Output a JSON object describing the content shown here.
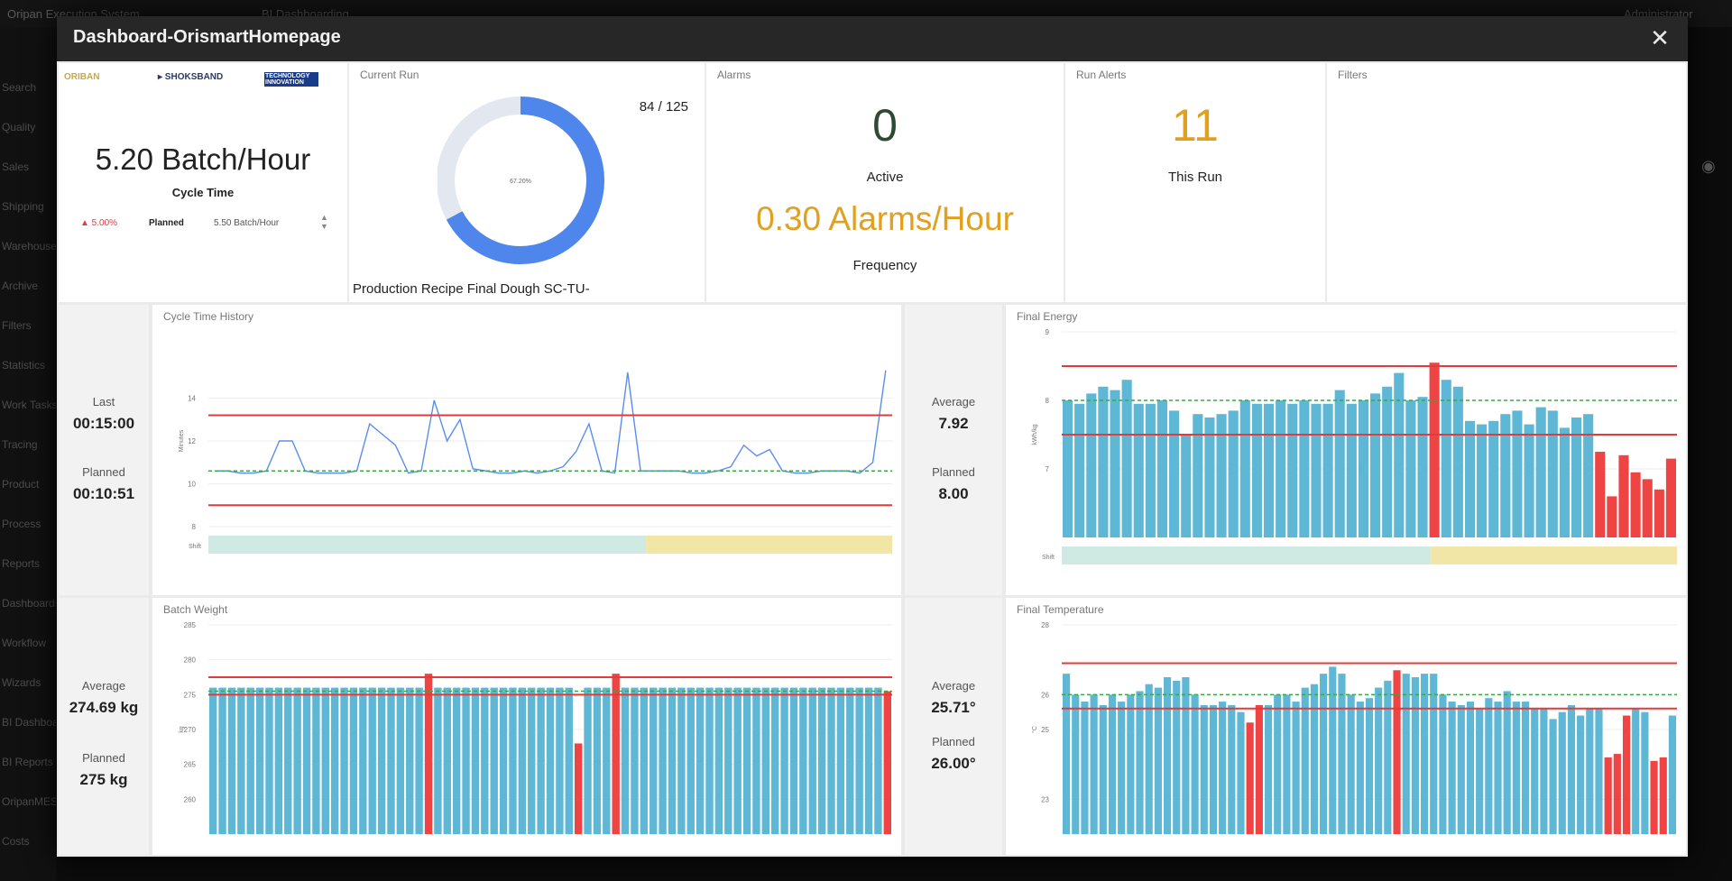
{
  "background": {
    "app_title": "Oripan Execution System",
    "tab_label": "BI Dashboarding",
    "user": "Administrator",
    "sidebar": [
      "Search",
      "Quality",
      "Sales",
      "Shipping",
      "Warehouse",
      "Archive",
      "Filters",
      "Statistics",
      "Work Tasks",
      "Tracing",
      "Product",
      "Process",
      "Reports",
      "Dashboards",
      "Workflow",
      "Wizards",
      "BI Dashboard",
      "BI Reports",
      "OripanMES",
      "Costs"
    ]
  },
  "modal": {
    "title": "Dashboard-OrismartHomepage",
    "close": "✕"
  },
  "logos": {
    "l1": "ORIBAN",
    "l2": "▸ SHOKSBAND",
    "l3": "TECHNOLOGY INNOVATION"
  },
  "cycle": {
    "value": "5.20 Batch/Hour",
    "label": "Cycle Time",
    "delta": "▲ 5.00%",
    "planned_label": "Planned",
    "planned_value": "5.50 Batch/Hour"
  },
  "current_run": {
    "title": "Current Run",
    "count": "84 / 125",
    "percent_label": "67.20%",
    "percent": 0.672,
    "recipe": "Production Recipe Final Dough SC-TU-"
  },
  "alarms": {
    "title": "Alarms",
    "active_value": "0",
    "active_label": "Active",
    "rate_value": "0.30 Alarms/Hour",
    "rate_label": "Frequency"
  },
  "run_alerts": {
    "title": "Run Alerts",
    "value": "11",
    "label": "This Run"
  },
  "filters": {
    "title": "Filters"
  },
  "colors": {
    "bar": "#5fb7d6",
    "alarm": "#ef4444",
    "line": "#5b8def",
    "gauge": "#4f86ec",
    "green": "#e0a020",
    "active": "#2e4a35",
    "shift1": "#cfe9e3",
    "shift2": "#f2e6a6"
  },
  "stats": {
    "cycle": {
      "l1": "Last",
      "v1": "00:15:00",
      "l2": "Planned",
      "v2": "00:10:51"
    },
    "energy": {
      "l1": "Average",
      "v1": "7.92",
      "l2": "Planned",
      "v2": "8.00"
    },
    "weight": {
      "l1": "Average",
      "v1": "274.69 kg",
      "l2": "Planned",
      "v2": "275 kg"
    },
    "temp": {
      "l1": "Average",
      "v1": "25.71°",
      "l2": "Planned",
      "v2": "26.00°"
    }
  },
  "chart_data": [
    {
      "id": "cycle",
      "type": "line",
      "title": "Cycle Time History",
      "ylabel": "Minutes",
      "ylim": [
        8,
        16
      ],
      "yticks": [
        8,
        10,
        12,
        14
      ],
      "values": [
        10.6,
        10.6,
        10.5,
        10.5,
        10.6,
        12.0,
        12.0,
        10.6,
        10.5,
        10.5,
        10.5,
        10.6,
        12.8,
        12.3,
        11.8,
        10.5,
        10.6,
        13.9,
        12.0,
        13.0,
        10.7,
        10.6,
        10.5,
        10.5,
        10.6,
        10.5,
        10.6,
        10.8,
        11.5,
        12.8,
        10.6,
        10.5,
        15.2,
        10.6,
        10.6,
        10.6,
        10.6,
        10.5,
        10.5,
        10.6,
        10.8,
        11.8,
        11.3,
        11.6,
        10.6,
        10.5,
        10.5,
        10.6,
        10.6,
        10.6,
        10.5,
        11.0,
        15.3
      ],
      "ucl": 13.2,
      "lcl": 9.0,
      "target": 10.6,
      "shift": "Shift",
      "shift_split": 0.64
    },
    {
      "id": "energy",
      "type": "bar",
      "title": "Final Energy",
      "ylabel": "kWh/kg",
      "ylim": [
        6,
        9
      ],
      "yticks": [
        7,
        8,
        9
      ],
      "values": [
        8.0,
        7.95,
        8.1,
        8.2,
        8.15,
        8.3,
        7.95,
        7.95,
        8.0,
        7.85,
        7.5,
        7.8,
        7.75,
        7.8,
        7.85,
        8.0,
        7.95,
        7.95,
        8.0,
        7.95,
        8.0,
        7.95,
        7.95,
        8.15,
        7.95,
        8.0,
        8.1,
        8.2,
        8.4,
        8.0,
        8.05,
        8.55,
        8.3,
        8.2,
        7.7,
        7.65,
        7.7,
        7.8,
        7.85,
        7.65,
        7.9,
        7.85,
        7.6,
        7.75,
        7.8,
        7.25,
        6.6,
        7.2,
        6.95,
        6.85,
        6.7,
        7.15
      ],
      "alarm_idx": [
        31,
        45,
        46,
        47,
        48,
        49,
        50,
        51
      ],
      "ucl": 8.5,
      "lcl": 7.5,
      "target": 8.0,
      "shift": "Shift",
      "shift_split": 0.6
    },
    {
      "id": "weight",
      "type": "bar",
      "title": "Batch Weight",
      "ylabel": "kg",
      "ylim": [
        255,
        285
      ],
      "yticks": [
        260,
        265,
        270,
        275,
        280,
        285
      ],
      "values": [
        276,
        276,
        276,
        276,
        276,
        276,
        276,
        276,
        276,
        276,
        276,
        276,
        276,
        276,
        276,
        276,
        276,
        276,
        276,
        276,
        276,
        276,
        276,
        277,
        276,
        276,
        276,
        276,
        276,
        276,
        276,
        276,
        276,
        276,
        276,
        276,
        276,
        276,
        276,
        276,
        276,
        276,
        276,
        276,
        276,
        276,
        276,
        276,
        276,
        276,
        276,
        276,
        276,
        276,
        276,
        276,
        276,
        276,
        276,
        276,
        276,
        276,
        276,
        276,
        276,
        276,
        276,
        276,
        276,
        276,
        276,
        276,
        276
      ],
      "alarm_idx": [
        23,
        39,
        43,
        72
      ],
      "alarm_values": {
        "23": 278,
        "39": 268,
        "43": 278,
        "72": 275.5
      },
      "ucl": 277.5,
      "lcl": 275,
      "target": 275.5
    },
    {
      "id": "temp",
      "type": "bar",
      "title": "Final Temperature",
      "ylabel": "°C",
      "ylim": [
        22,
        28
      ],
      "yticks": [
        23,
        25,
        26,
        28
      ],
      "values": [
        26.6,
        26.0,
        25.8,
        26.0,
        25.7,
        26.0,
        25.8,
        26.0,
        26.1,
        26.3,
        26.2,
        26.5,
        26.4,
        26.5,
        26.0,
        25.7,
        25.7,
        25.8,
        25.7,
        25.5,
        25.2,
        25.7,
        25.7,
        26.0,
        26.0,
        25.8,
        26.2,
        26.3,
        26.6,
        26.8,
        26.6,
        26.0,
        25.8,
        25.9,
        26.2,
        26.4,
        26.7,
        26.6,
        26.5,
        26.6,
        26.6,
        26.0,
        25.8,
        25.7,
        25.8,
        25.6,
        25.9,
        25.8,
        26.1,
        25.8,
        25.8,
        25.6,
        25.6,
        25.3,
        25.5,
        25.7,
        25.4,
        25.6,
        25.6,
        24.2,
        24.3,
        25.4,
        25.6,
        25.5,
        24.1,
        24.2,
        25.4
      ],
      "alarm_idx": [
        20,
        21,
        36,
        59,
        60,
        61,
        64,
        65
      ],
      "ucl": 26.9,
      "lcl": 25.6,
      "target": 26.0
    }
  ]
}
